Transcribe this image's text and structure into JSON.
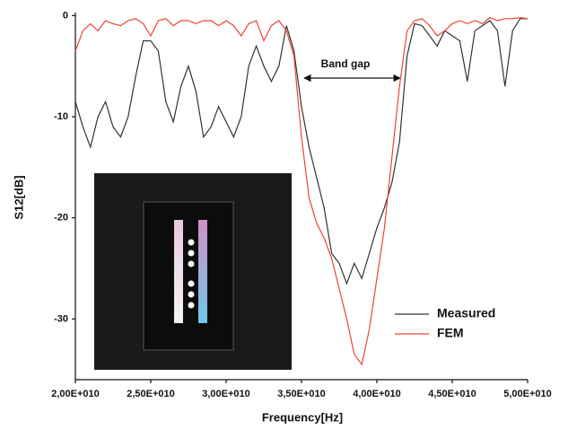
{
  "chart_data": {
    "type": "line",
    "xlabel": "Frequency[Hz]",
    "ylabel": "S12[dB]",
    "annotation": "Band gap",
    "legend": "lower right",
    "x": [
      20000000000.0,
      20500000000.0,
      21000000000.0,
      21500000000.0,
      22000000000.0,
      22500000000.0,
      23000000000.0,
      23500000000.0,
      24000000000.0,
      24500000000.0,
      25000000000.0,
      25500000000.0,
      26000000000.0,
      26500000000.0,
      27000000000.0,
      27500000000.0,
      28000000000.0,
      28500000000.0,
      29000000000.0,
      29500000000.0,
      30000000000.0,
      30500000000.0,
      31000000000.0,
      31500000000.0,
      32000000000.0,
      32500000000.0,
      33000000000.0,
      33500000000.0,
      34000000000.0,
      34500000000.0,
      35000000000.0,
      35500000000.0,
      36000000000.0,
      36500000000.0,
      37000000000.0,
      37500000000.0,
      38000000000.0,
      38500000000.0,
      39000000000.0,
      39500000000.0,
      40000000000.0,
      40500000000.0,
      41000000000.0,
      41500000000.0,
      42000000000.0,
      42500000000.0,
      43000000000.0,
      43500000000.0,
      44000000000.0,
      44500000000.0,
      45000000000.0,
      45500000000.0,
      46000000000.0,
      46500000000.0,
      47000000000.0,
      47500000000.0,
      48000000000.0,
      48500000000.0,
      49000000000.0,
      49500000000.0,
      50000000000.0
    ],
    "series": [
      {
        "name": "Measured",
        "color": "#333333",
        "values": [
          -8.5,
          -11,
          -13,
          -10,
          -8.5,
          -11,
          -12,
          -10,
          -6,
          -2.5,
          -2.5,
          -3.5,
          -8.5,
          -10.5,
          -7,
          -5,
          -7.5,
          -12,
          -11,
          -9,
          -10.5,
          -12,
          -10,
          -5,
          -3,
          -5,
          -6.5,
          -5,
          -1,
          -3.5,
          -9,
          -13,
          -16,
          -19,
          -23.5,
          -24.5,
          -26.5,
          -24.5,
          -26,
          -23.5,
          -21,
          -19,
          -16.5,
          -12.5,
          -4,
          -0.8,
          -1,
          -2,
          -3,
          -1.5,
          -2,
          -2.5,
          -6.5,
          -1.5,
          -1,
          -0.5,
          -1.5,
          -7,
          -1.5,
          -0.3,
          -0.3
        ]
      },
      {
        "name": "FEM",
        "color": "#ee4433",
        "values": [
          -3.5,
          -1.5,
          -0.8,
          -1.5,
          -0.5,
          -0.8,
          -1,
          -0.5,
          -0.3,
          -0.8,
          -2,
          -0.5,
          -0.3,
          -1,
          -0.5,
          -0.5,
          -0.8,
          -0.5,
          -0.5,
          -1,
          -0.5,
          -1,
          -2,
          -0.8,
          -0.5,
          -2.5,
          -1,
          -0.5,
          -1.5,
          -4,
          -12,
          -18,
          -20.5,
          -22,
          -24,
          -27,
          -30,
          -33.5,
          -34.5,
          -31,
          -26,
          -21,
          -14,
          -7,
          -1.5,
          -0.5,
          -0.3,
          -1,
          -2,
          -1.5,
          -0.8,
          -0.5,
          -0.8,
          -0.5,
          -0.8,
          -0.2,
          -0.5,
          -0.3,
          -0.3,
          -0.2,
          -0.3
        ]
      }
    ],
    "xlim": [
      20000000000.0,
      50000000000.0
    ],
    "ylim": [
      -36,
      0.3
    ],
    "xticks": [
      {
        "value": 20000000000.0,
        "label": "2,00E+010"
      },
      {
        "value": 25000000000.0,
        "label": "2,50E+010"
      },
      {
        "value": 30000000000.0,
        "label": "3,00E+010"
      },
      {
        "value": 35000000000.0,
        "label": "3,50E+010"
      },
      {
        "value": 40000000000.0,
        "label": "4,00E+010"
      },
      {
        "value": 45000000000.0,
        "label": "4,50E+010"
      },
      {
        "value": 50000000000.0,
        "label": "5,00E+010"
      }
    ],
    "yticks": [
      0,
      -10,
      -20,
      -30
    ]
  }
}
